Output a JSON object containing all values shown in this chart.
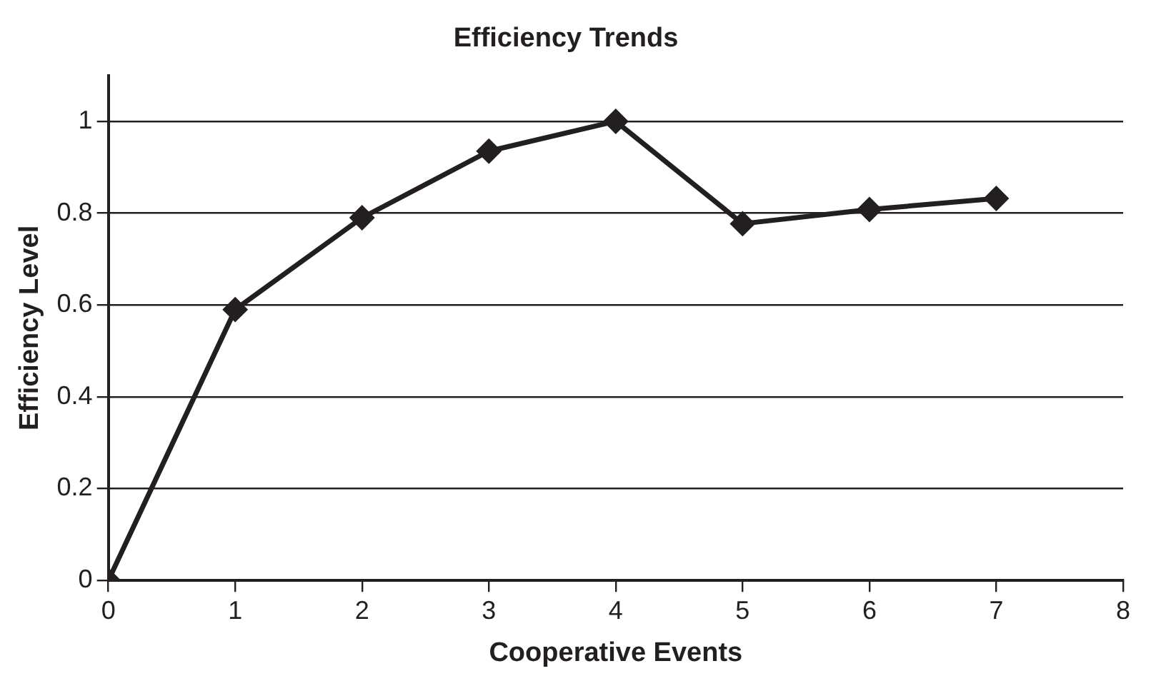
{
  "chart_data": {
    "type": "line",
    "title": "Efficiency Trends",
    "xlabel": "Cooperative Events",
    "ylabel": "Efficiency Level",
    "x": [
      0,
      1,
      2,
      3,
      4,
      5,
      6,
      7
    ],
    "series": [
      {
        "color": "#231f20",
        "values": [
          0,
          0.59,
          0.79,
          0.935,
          1.0,
          0.777,
          0.808,
          0.832
        ]
      }
    ],
    "xlim": [
      0,
      8
    ],
    "xticks": [
      0,
      1,
      2,
      3,
      4,
      5,
      6,
      7,
      8
    ],
    "ylim": [
      0,
      1.1
    ],
    "yticks": [
      0,
      0.2,
      0.4,
      0.6,
      0.8,
      1
    ],
    "grid": "y",
    "legend": false,
    "marker": "diamond",
    "line_style": "solid"
  }
}
